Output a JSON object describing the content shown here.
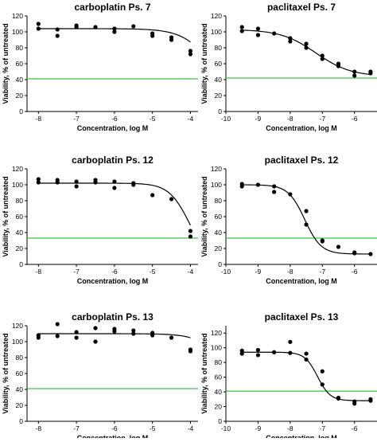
{
  "colors": {
    "threshold": "#3cc03c",
    "marker": "#000000",
    "curve": "#000000"
  },
  "chart_data": [
    {
      "type": "scatter",
      "title": "carboplatin Ps. 7",
      "xlabel": "Concentration, log M",
      "ylabel": "Viability, % of untreated",
      "xlim": [
        -8.3,
        -3.8
      ],
      "ylim": [
        0,
        120
      ],
      "xticks": [
        -8,
        -7,
        -6,
        -5,
        -4
      ],
      "yticks": [
        0,
        20,
        40,
        60,
        80,
        100,
        120
      ],
      "points": [
        [
          -8,
          110
        ],
        [
          -8,
          104
        ],
        [
          -7.5,
          95
        ],
        [
          -7.5,
          103
        ],
        [
          -7,
          106
        ],
        [
          -7,
          108
        ],
        [
          -6.5,
          106
        ],
        [
          -6,
          104
        ],
        [
          -6,
          100
        ],
        [
          -5.5,
          107
        ],
        [
          -5,
          98
        ],
        [
          -5,
          95
        ],
        [
          -4.5,
          90
        ],
        [
          -4.5,
          93
        ],
        [
          -4,
          72
        ],
        [
          -4,
          76
        ]
      ],
      "fit": {
        "top": 104,
        "bottom": 0,
        "log_ec50": -3.35,
        "hill": -1.1,
        "x_range": [
          -8,
          -4
        ]
      },
      "threshold": 41
    },
    {
      "type": "scatter",
      "title": "paclitaxel Ps. 7",
      "xlabel": "Concentration, log M",
      "ylabel": "Viability, % of untreated",
      "xlim": [
        -10,
        -5.3
      ],
      "ylim": [
        0,
        120
      ],
      "xticks": [
        -10,
        -9,
        -8,
        -7,
        -6,
        -5
      ],
      "yticks": [
        0,
        20,
        40,
        60,
        80,
        100,
        120
      ],
      "points": [
        [
          -9.5,
          106
        ],
        [
          -9.5,
          101
        ],
        [
          -9,
          104
        ],
        [
          -9,
          96
        ],
        [
          -8.5,
          98
        ],
        [
          -8,
          92
        ],
        [
          -8,
          88
        ],
        [
          -7.5,
          85
        ],
        [
          -7.5,
          80
        ],
        [
          -7,
          70
        ],
        [
          -7,
          66
        ],
        [
          -6.5,
          60
        ],
        [
          -6.5,
          57
        ],
        [
          -6,
          50
        ],
        [
          -6,
          45
        ],
        [
          -5.5,
          50
        ],
        [
          -5.5,
          48
        ]
      ],
      "fit": {
        "top": 103,
        "bottom": 44,
        "log_ec50": -7.2,
        "hill": -0.8,
        "x_range": [
          -9.5,
          -5.5
        ]
      },
      "threshold": 42
    },
    {
      "type": "scatter",
      "title": "carboplatin Ps. 12",
      "xlabel": "Concentration, log M",
      "ylabel": "Viability, % of untreated",
      "xlim": [
        -8.3,
        -3.8
      ],
      "ylim": [
        0,
        120
      ],
      "xticks": [
        -8,
        -7,
        -6,
        -5,
        -4
      ],
      "yticks": [
        0,
        20,
        40,
        60,
        80,
        100,
        120
      ],
      "points": [
        [
          -8,
          107
        ],
        [
          -8,
          103
        ],
        [
          -7.5,
          106
        ],
        [
          -7.5,
          103
        ],
        [
          -7,
          104
        ],
        [
          -7,
          98
        ],
        [
          -6.5,
          106
        ],
        [
          -6.5,
          103
        ],
        [
          -6,
          104
        ],
        [
          -6,
          96
        ],
        [
          -5.5,
          102
        ],
        [
          -5.5,
          100
        ],
        [
          -5,
          87
        ],
        [
          -4.5,
          82
        ],
        [
          -4,
          42
        ],
        [
          -4,
          35
        ]
      ],
      "fit": {
        "top": 102,
        "bottom": 0,
        "log_ec50": -4.02,
        "hill": -1.6,
        "x_range": [
          -8,
          -4
        ]
      },
      "threshold": 33
    },
    {
      "type": "scatter",
      "title": "paclitaxel Ps. 12",
      "xlabel": "Concentration, log M",
      "ylabel": "Viability, % of untreated",
      "xlim": [
        -10,
        -5.3
      ],
      "ylim": [
        0,
        120
      ],
      "xticks": [
        -10,
        -9,
        -8,
        -7,
        -6,
        -5
      ],
      "yticks": [
        0,
        20,
        40,
        60,
        80,
        100,
        120
      ],
      "points": [
        [
          -9.5,
          101
        ],
        [
          -9.5,
          98
        ],
        [
          -9,
          100
        ],
        [
          -8.5,
          98
        ],
        [
          -8.5,
          91
        ],
        [
          -8,
          88
        ],
        [
          -7.5,
          67
        ],
        [
          -7.5,
          50
        ],
        [
          -7,
          30
        ],
        [
          -7,
          29
        ],
        [
          -6.5,
          22
        ],
        [
          -6,
          15
        ],
        [
          -6,
          14
        ],
        [
          -5.5,
          13
        ]
      ],
      "fit": {
        "top": 100,
        "bottom": 13,
        "log_ec50": -7.55,
        "hill": -1.7,
        "x_range": [
          -9.5,
          -5.5
        ]
      },
      "threshold": 33
    },
    {
      "type": "scatter",
      "title": "carboplatin Ps. 13",
      "xlabel": "Concentration, log M",
      "ylabel": "Viability, % of untreated",
      "xlim": [
        -8.3,
        -3.8
      ],
      "ylim": [
        0,
        120
      ],
      "xticks": [
        -8,
        -7,
        -6,
        -5,
        -4
      ],
      "yticks": [
        0,
        20,
        40,
        60,
        80,
        100,
        120
      ],
      "points": [
        [
          -8,
          105
        ],
        [
          -8,
          108
        ],
        [
          -7.5,
          122
        ],
        [
          -7.5,
          107
        ],
        [
          -7,
          105
        ],
        [
          -7,
          112
        ],
        [
          -6.5,
          117
        ],
        [
          -6.5,
          100
        ],
        [
          -6,
          116
        ],
        [
          -6,
          113
        ],
        [
          -5.5,
          114
        ],
        [
          -5.5,
          110
        ],
        [
          -5,
          111
        ],
        [
          -5,
          108
        ],
        [
          -4.5,
          105
        ],
        [
          -4,
          88
        ],
        [
          -4,
          90
        ]
      ],
      "fit": {
        "top": 110,
        "bottom": 0,
        "log_ec50": -2.9,
        "hill": -1.2,
        "x_range": [
          -8,
          -4
        ]
      },
      "threshold": 41
    },
    {
      "type": "scatter",
      "title": "paclitaxel Ps. 13",
      "xlabel": "Concentration, log M",
      "ylabel": "Viability, % of untreated",
      "xlim": [
        -10,
        -5.3
      ],
      "ylim": [
        0,
        130
      ],
      "xticks": [
        -10,
        -9,
        -8,
        -7,
        -6,
        -5
      ],
      "yticks": [
        0,
        20,
        40,
        60,
        80,
        100,
        120
      ],
      "points": [
        [
          -9.5,
          92
        ],
        [
          -9.5,
          96
        ],
        [
          -9,
          97
        ],
        [
          -9,
          90
        ],
        [
          -8.5,
          94
        ],
        [
          -8,
          108
        ],
        [
          -8,
          93
        ],
        [
          -7.5,
          92
        ],
        [
          -7.5,
          84
        ],
        [
          -7,
          68
        ],
        [
          -7,
          50
        ],
        [
          -6.5,
          32
        ],
        [
          -6.5,
          31
        ],
        [
          -6,
          27
        ],
        [
          -6,
          24
        ],
        [
          -5.5,
          30
        ],
        [
          -5.5,
          28
        ]
      ],
      "fit": {
        "top": 94,
        "bottom": 28,
        "log_ec50": -7.15,
        "hill": -2.2,
        "x_range": [
          -9.5,
          -5.5
        ]
      },
      "threshold": 41
    }
  ]
}
